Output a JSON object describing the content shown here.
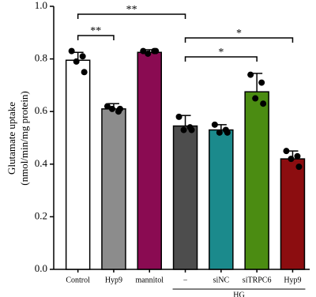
{
  "chart_data": {
    "type": "bar",
    "categories": [
      "Control",
      "Hyp9",
      "mannitol",
      "−",
      "siNC",
      "siTRPC6",
      "Hyp9"
    ],
    "values": [
      0.795,
      0.61,
      0.825,
      0.545,
      0.53,
      0.675,
      0.42
    ],
    "errors": [
      0.03,
      0.02,
      0.01,
      0.04,
      0.02,
      0.07,
      0.03
    ],
    "points": [
      [
        0.83,
        0.81,
        0.79,
        0.75
      ],
      [
        0.62,
        0.6,
        0.61,
        0.61
      ],
      [
        0.83,
        0.83,
        0.82,
        0.83
      ],
      [
        0.58,
        0.54,
        0.53,
        0.53
      ],
      [
        0.55,
        0.53,
        0.52,
        0.52
      ],
      [
        0.74,
        0.71,
        0.65,
        0.63
      ],
      [
        0.45,
        0.43,
        0.42,
        0.39
      ]
    ],
    "colors": [
      "#ffffff",
      "#8c8c8c",
      "#8a0b52",
      "#4d4d4d",
      "#1b8a8c",
      "#4b8c12",
      "#8c0d10"
    ],
    "ylim": [
      0,
      1
    ],
    "yticks": [
      {
        "value": 0,
        "label": "0.0"
      },
      0.2,
      0.4,
      0.6,
      0.8,
      {
        "value": 1,
        "label": "1.0"
      }
    ],
    "ylabel": [
      "Glutamate uptake",
      "(nmol/min/mg protein)"
    ],
    "annotations": [
      {
        "from": 0,
        "to": 1,
        "label": "**"
      },
      {
        "from": 0,
        "to": 3,
        "label": "**"
      },
      {
        "from": 3,
        "to": 6,
        "label": "*"
      },
      {
        "from": 3,
        "to": 5,
        "label": "*"
      }
    ],
    "groups": [
      {
        "from": 3,
        "to": 6,
        "label": "HG"
      }
    ]
  }
}
